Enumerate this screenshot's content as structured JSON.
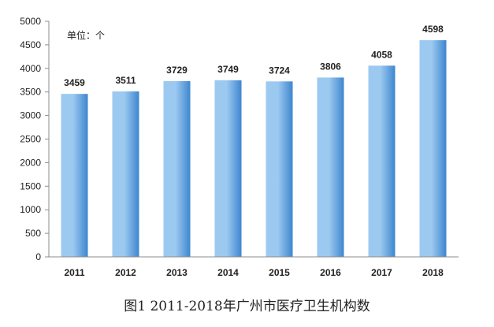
{
  "chart_data": {
    "type": "bar",
    "title": "图1 2011-2018年广州市医疗卫生机构数",
    "unit_label": "单位：个",
    "categories": [
      "2011",
      "2012",
      "2013",
      "2014",
      "2015",
      "2016",
      "2017",
      "2018"
    ],
    "values": [
      3459,
      3511,
      3729,
      3749,
      3724,
      3806,
      4058,
      4598
    ],
    "data_labels": [
      "3459",
      "3511",
      "3729",
      "3749",
      "3724",
      "3806",
      "4058",
      "4598"
    ],
    "ylim": [
      0,
      5000
    ],
    "yticks": [
      0,
      500,
      1000,
      1500,
      2000,
      2500,
      3000,
      3500,
      4000,
      4500,
      5000
    ],
    "grid": false,
    "legend": "none",
    "bar_color_light": "#9cc9f0",
    "bar_color_dark": "#3d86cf",
    "axis_color": "#8c8c8c"
  }
}
